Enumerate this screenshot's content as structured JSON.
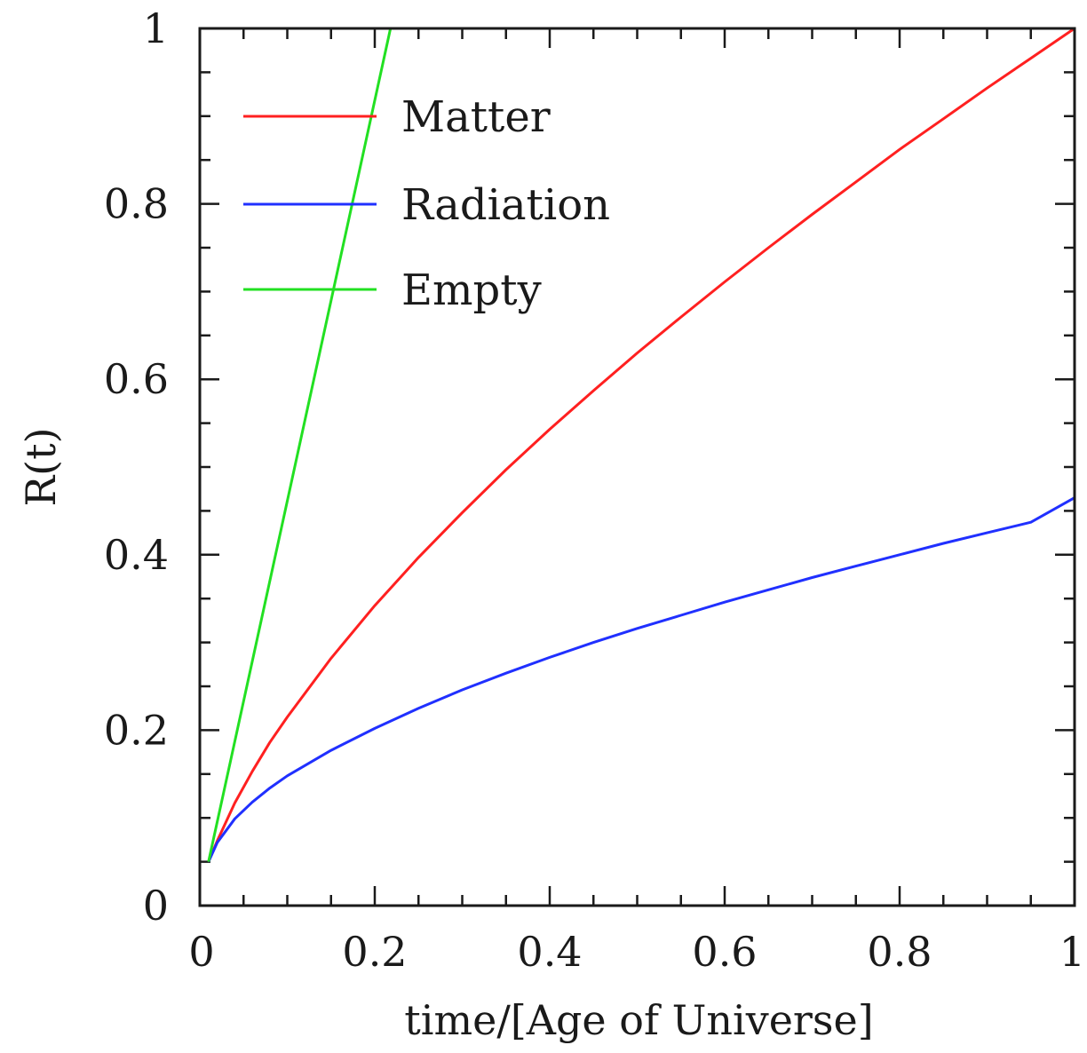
{
  "chart_data": {
    "type": "line",
    "title": "",
    "xlabel": "time/[Age of Universe]",
    "ylabel": "R(t)",
    "xlim": [
      0,
      1
    ],
    "ylim": [
      0,
      1
    ],
    "x_ticks": [
      "0",
      "0.2",
      "0.4",
      "0.6",
      "0.8",
      "1"
    ],
    "y_ticks": [
      "0",
      "0.2",
      "0.4",
      "0.6",
      "0.8",
      "1"
    ],
    "legend_position": "top-left",
    "grid": false,
    "series": [
      {
        "name": "Matter",
        "color": "#ff2020",
        "x": [
          0.01,
          0.02,
          0.04,
          0.06,
          0.08,
          0.1,
          0.15,
          0.2,
          0.25,
          0.3,
          0.35,
          0.4,
          0.45,
          0.5,
          0.55,
          0.6,
          0.65,
          0.7,
          0.75,
          0.8,
          0.85,
          0.9,
          0.95,
          1.0
        ],
        "y": [
          0.05,
          0.074,
          0.117,
          0.153,
          0.186,
          0.215,
          0.282,
          0.342,
          0.397,
          0.448,
          0.497,
          0.543,
          0.587,
          0.63,
          0.671,
          0.711,
          0.75,
          0.788,
          0.825,
          0.862,
          0.897,
          0.932,
          0.966,
          1.0
        ]
      },
      {
        "name": "Radiation",
        "color": "#2030ff",
        "x": [
          0.01,
          0.02,
          0.04,
          0.06,
          0.08,
          0.1,
          0.15,
          0.2,
          0.25,
          0.3,
          0.35,
          0.4,
          0.45,
          0.5,
          0.55,
          0.6,
          0.65,
          0.7,
          0.75,
          0.8,
          0.85,
          0.9,
          0.95,
          1.0
        ],
        "y": [
          0.05,
          0.072,
          0.099,
          0.118,
          0.134,
          0.148,
          0.177,
          0.202,
          0.225,
          0.246,
          0.265,
          0.283,
          0.3,
          0.316,
          0.331,
          0.346,
          0.36,
          0.374,
          0.387,
          0.4,
          0.413,
          0.425,
          0.437,
          0.465
        ]
      },
      {
        "name": "Empty",
        "color": "#22e022",
        "x": [
          0.01,
          0.218
        ],
        "y": [
          0.05,
          1.0
        ]
      }
    ]
  }
}
